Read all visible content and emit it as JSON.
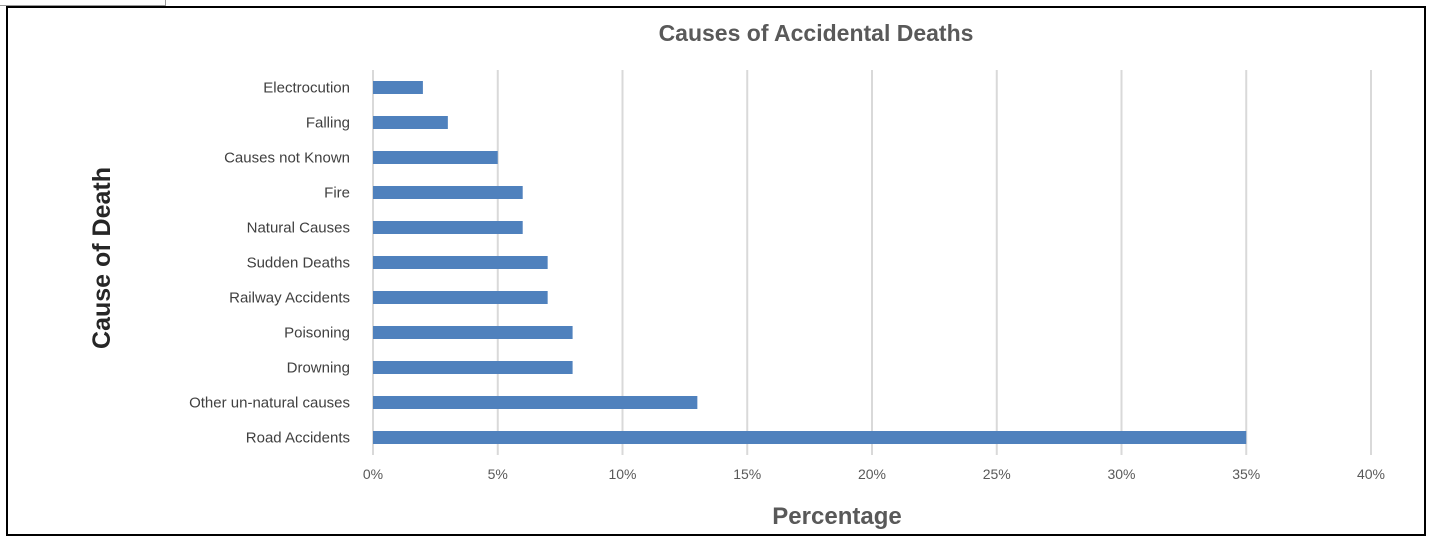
{
  "chart_data": {
    "type": "bar",
    "orientation": "horizontal",
    "title": "Causes of Accidental Deaths",
    "xlabel": "Percentage",
    "ylabel": "Cause of Death",
    "categories": [
      "Electrocution",
      "Falling",
      "Causes not Known",
      "Fire",
      "Natural Causes",
      "Sudden Deaths",
      "Railway Accidents",
      "Poisoning",
      "Drowning",
      "Other un-natural causes",
      "Road Accidents"
    ],
    "values": [
      2,
      3,
      5,
      6,
      6,
      7,
      7,
      8,
      8,
      13,
      35
    ],
    "unit": "%",
    "xlim": [
      0,
      40
    ],
    "xticks": [
      "0%",
      "5%",
      "10%",
      "15%",
      "20%",
      "25%",
      "30%",
      "35%",
      "40%"
    ],
    "grid": "vertical",
    "legend": "none",
    "bar_color": "#4f81bd",
    "grid_color": "#d9d9d9"
  }
}
